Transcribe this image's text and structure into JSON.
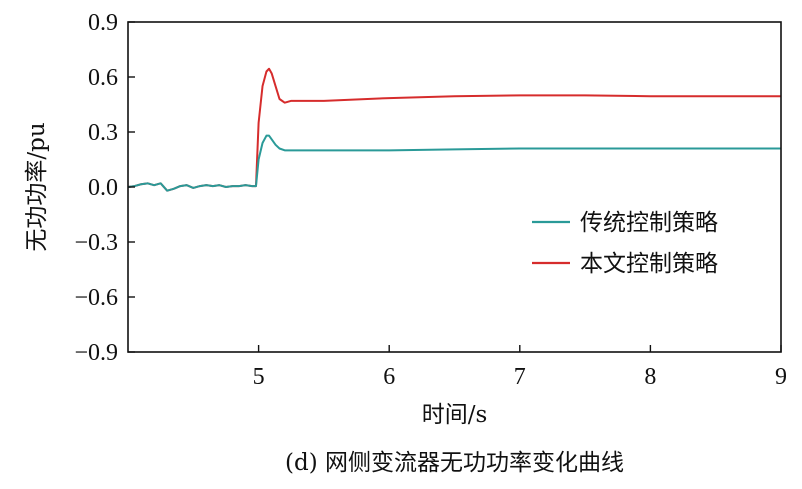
{
  "chart_data": {
    "type": "line",
    "caption": "(d) 网侧变流器无功功率变化曲线",
    "xlabel": "时间/s",
    "ylabel": "无功功率/pu",
    "xlim": [
      4.0,
      9.0
    ],
    "ylim": [
      -0.9,
      0.9
    ],
    "xticks": [
      5,
      6,
      7,
      8,
      9
    ],
    "yticks": [
      -0.9,
      -0.6,
      -0.3,
      0.0,
      0.3,
      0.6,
      0.9
    ],
    "ytick_labels": [
      "−0.9",
      "−0.6",
      "−0.3",
      "0.0",
      "0.3",
      "0.6",
      "0.9"
    ],
    "grid": false,
    "legend_position": "lower-right",
    "series": [
      {
        "name": "传统控制策略",
        "color": "#2a9a98",
        "x": [
          4.0,
          4.05,
          4.1,
          4.15,
          4.2,
          4.25,
          4.3,
          4.35,
          4.4,
          4.45,
          4.5,
          4.55,
          4.6,
          4.65,
          4.7,
          4.75,
          4.8,
          4.85,
          4.9,
          4.95,
          4.98,
          5.0,
          5.03,
          5.06,
          5.08,
          5.1,
          5.13,
          5.16,
          5.2,
          5.25,
          5.3,
          5.5,
          6.0,
          6.5,
          7.0,
          7.5,
          8.0,
          8.5,
          9.0
        ],
        "values": [
          0.0,
          0.005,
          0.015,
          0.02,
          0.01,
          0.02,
          -0.02,
          -0.01,
          0.005,
          0.01,
          -0.005,
          0.005,
          0.01,
          0.005,
          0.01,
          0.0,
          0.005,
          0.005,
          0.01,
          0.005,
          0.005,
          0.15,
          0.24,
          0.28,
          0.28,
          0.26,
          0.23,
          0.21,
          0.2,
          0.2,
          0.2,
          0.2,
          0.2,
          0.205,
          0.21,
          0.21,
          0.21,
          0.21,
          0.21
        ]
      },
      {
        "name": "本文控制策略",
        "color": "#d62c2c",
        "x": [
          4.0,
          4.05,
          4.1,
          4.15,
          4.2,
          4.25,
          4.3,
          4.35,
          4.4,
          4.45,
          4.5,
          4.55,
          4.6,
          4.65,
          4.7,
          4.75,
          4.8,
          4.85,
          4.9,
          4.95,
          4.98,
          5.0,
          5.03,
          5.06,
          5.08,
          5.1,
          5.13,
          5.16,
          5.2,
          5.25,
          5.3,
          5.5,
          6.0,
          6.5,
          7.0,
          7.5,
          8.0,
          8.5,
          9.0
        ],
        "values": [
          0.0,
          0.005,
          0.015,
          0.02,
          0.01,
          0.02,
          -0.02,
          -0.01,
          0.005,
          0.01,
          -0.005,
          0.005,
          0.01,
          0.005,
          0.01,
          0.0,
          0.005,
          0.005,
          0.01,
          0.005,
          0.005,
          0.35,
          0.55,
          0.63,
          0.645,
          0.62,
          0.55,
          0.48,
          0.46,
          0.47,
          0.47,
          0.47,
          0.485,
          0.495,
          0.5,
          0.5,
          0.495,
          0.495,
          0.495
        ]
      }
    ]
  }
}
